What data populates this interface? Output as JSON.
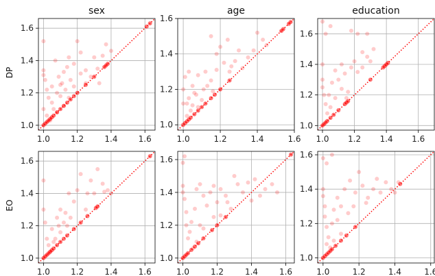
{
  "figure": {
    "column_titles": [
      "sex",
      "age",
      "education"
    ],
    "row_labels": [
      "DP",
      "EO"
    ],
    "colors": {
      "points": "#ff0000",
      "diagonal": "#ff0000",
      "grid": "#b0b0b0",
      "axes": "#000000"
    }
  },
  "chart_data": [
    {
      "type": "scatter",
      "row": 0,
      "col": 0,
      "title": "sex",
      "ylabel": "DP",
      "xlim": [
        0.97,
        1.66
      ],
      "ylim": [
        0.97,
        1.66
      ],
      "xticks": [
        "1.0",
        "1.2",
        "1.4",
        "1.6"
      ],
      "yticks": [
        "1.0",
        "1.2",
        "1.4",
        "1.6"
      ],
      "grid": true,
      "diagonal": true,
      "points": [
        [
          1.0,
          1.52
        ],
        [
          1.0,
          1.34
        ],
        [
          1.0,
          1.31
        ],
        [
          1.01,
          1.28
        ],
        [
          1.02,
          1.22
        ],
        [
          1.03,
          1.17
        ],
        [
          1.0,
          1.1
        ],
        [
          1.02,
          1.06
        ],
        [
          1.05,
          1.14
        ],
        [
          1.08,
          1.2
        ],
        [
          1.1,
          1.25
        ],
        [
          1.12,
          1.33
        ],
        [
          1.15,
          1.42
        ],
        [
          1.18,
          1.38
        ],
        [
          1.2,
          1.52
        ],
        [
          1.22,
          1.45
        ],
        [
          1.25,
          1.34
        ],
        [
          1.28,
          1.3
        ],
        [
          1.3,
          1.42
        ],
        [
          1.33,
          1.26
        ],
        [
          1.35,
          1.43
        ],
        [
          1.07,
          1.4
        ],
        [
          1.1,
          1.18
        ],
        [
          1.13,
          1.22
        ],
        [
          1.15,
          1.17
        ],
        [
          1.04,
          1.03
        ],
        [
          1.06,
          1.1
        ],
        [
          1.08,
          1.08
        ],
        [
          1.12,
          1.12
        ],
        [
          1.16,
          1.28
        ],
        [
          1.18,
          1.24
        ],
        [
          1.25,
          1.26
        ],
        [
          1.32,
          1.35
        ],
        [
          1.37,
          1.5
        ],
        [
          1.4,
          1.46
        ],
        [
          1.05,
          1.24
        ],
        [
          1.09,
          1.3
        ],
        [
          1.11,
          1.26
        ],
        [
          1.14,
          1.36
        ],
        [
          1.22,
          1.32
        ]
      ],
      "diagonal_points": [
        [
          1.0,
          1.0
        ],
        [
          1.01,
          1.01
        ],
        [
          1.02,
          1.02
        ],
        [
          1.03,
          1.03
        ],
        [
          1.04,
          1.04
        ],
        [
          1.05,
          1.05
        ],
        [
          1.06,
          1.06
        ],
        [
          1.08,
          1.08
        ],
        [
          1.1,
          1.1
        ],
        [
          1.12,
          1.12
        ],
        [
          1.14,
          1.14
        ],
        [
          1.16,
          1.16
        ],
        [
          1.18,
          1.18
        ],
        [
          1.2,
          1.2
        ],
        [
          1.25,
          1.25
        ],
        [
          1.3,
          1.3
        ],
        [
          1.36,
          1.36
        ],
        [
          1.37,
          1.37
        ],
        [
          1.38,
          1.38
        ],
        [
          1.61,
          1.61
        ],
        [
          1.63,
          1.63
        ]
      ]
    },
    {
      "type": "scatter",
      "row": 0,
      "col": 1,
      "title": "age",
      "xlim": [
        0.97,
        1.6
      ],
      "ylim": [
        0.97,
        1.6
      ],
      "xticks": [
        "1.0",
        "1.2",
        "1.4",
        "1.6"
      ],
      "yticks": [
        "1.0",
        "1.2",
        "1.4",
        "1.6"
      ],
      "grid": true,
      "diagonal": true,
      "points": [
        [
          1.0,
          1.12
        ],
        [
          1.0,
          1.2
        ],
        [
          1.01,
          1.27
        ],
        [
          1.02,
          1.05
        ],
        [
          1.03,
          1.15
        ],
        [
          1.05,
          1.22
        ],
        [
          1.07,
          1.17
        ],
        [
          1.08,
          1.1
        ],
        [
          1.1,
          1.14
        ],
        [
          1.12,
          1.3
        ],
        [
          1.13,
          1.22
        ],
        [
          1.15,
          1.25
        ],
        [
          1.18,
          1.4
        ],
        [
          1.2,
          1.44
        ],
        [
          1.22,
          1.35
        ],
        [
          1.25,
          1.3
        ],
        [
          1.28,
          1.36
        ],
        [
          1.3,
          1.42
        ],
        [
          1.32,
          1.32
        ],
        [
          1.35,
          1.38
        ],
        [
          1.4,
          1.52
        ],
        [
          1.43,
          1.48
        ],
        [
          1.45,
          1.45
        ],
        [
          1.15,
          1.5
        ],
        [
          1.18,
          1.31
        ],
        [
          1.08,
          1.28
        ],
        [
          1.04,
          1.08
        ],
        [
          1.06,
          1.18
        ],
        [
          1.11,
          1.2
        ],
        [
          1.24,
          1.48
        ],
        [
          1.38,
          1.42
        ],
        [
          1.02,
          1.12
        ],
        [
          1.03,
          1.3
        ],
        [
          1.05,
          1.11
        ],
        [
          1.16,
          1.19
        ],
        [
          1.26,
          1.33
        ]
      ],
      "diagonal_points": [
        [
          1.0,
          1.0
        ],
        [
          1.01,
          1.01
        ],
        [
          1.02,
          1.02
        ],
        [
          1.03,
          1.03
        ],
        [
          1.04,
          1.04
        ],
        [
          1.06,
          1.06
        ],
        [
          1.08,
          1.08
        ],
        [
          1.1,
          1.1
        ],
        [
          1.12,
          1.12
        ],
        [
          1.15,
          1.15
        ],
        [
          1.17,
          1.17
        ],
        [
          1.2,
          1.2
        ],
        [
          1.25,
          1.25
        ],
        [
          1.53,
          1.53
        ],
        [
          1.54,
          1.54
        ],
        [
          1.57,
          1.57
        ],
        [
          1.58,
          1.58
        ]
      ]
    },
    {
      "type": "scatter",
      "row": 0,
      "col": 2,
      "title": "education",
      "xlim": [
        0.97,
        1.7
      ],
      "ylim": [
        0.97,
        1.7
      ],
      "xticks": [
        "1.0",
        "1.2",
        "1.4",
        "1.6"
      ],
      "yticks": [
        "1.0",
        "1.2",
        "1.4",
        "1.6"
      ],
      "grid": true,
      "diagonal": true,
      "points": [
        [
          1.0,
          1.68
        ],
        [
          1.02,
          1.6
        ],
        [
          1.05,
          1.65
        ],
        [
          1.0,
          1.4
        ],
        [
          1.0,
          1.3
        ],
        [
          1.0,
          1.25
        ],
        [
          1.01,
          1.2
        ],
        [
          1.02,
          1.14
        ],
        [
          1.03,
          1.08
        ],
        [
          1.05,
          1.12
        ],
        [
          1.06,
          1.28
        ],
        [
          1.08,
          1.36
        ],
        [
          1.1,
          1.3
        ],
        [
          1.12,
          1.4
        ],
        [
          1.15,
          1.18
        ],
        [
          1.18,
          1.38
        ],
        [
          1.2,
          1.42
        ],
        [
          1.22,
          1.35
        ],
        [
          1.25,
          1.38
        ],
        [
          1.28,
          1.45
        ],
        [
          1.3,
          1.42
        ],
        [
          1.32,
          1.5
        ],
        [
          1.18,
          1.62
        ],
        [
          1.22,
          1.6
        ],
        [
          1.28,
          1.6
        ],
        [
          1.08,
          1.18
        ],
        [
          1.12,
          1.24
        ],
        [
          1.14,
          1.34
        ],
        [
          1.25,
          1.48
        ],
        [
          1.04,
          1.2
        ],
        [
          1.16,
          1.22
        ]
      ],
      "diagonal_points": [
        [
          1.0,
          1.0
        ],
        [
          1.01,
          1.01
        ],
        [
          1.02,
          1.02
        ],
        [
          1.03,
          1.03
        ],
        [
          1.05,
          1.05
        ],
        [
          1.07,
          1.07
        ],
        [
          1.1,
          1.1
        ],
        [
          1.14,
          1.14
        ],
        [
          1.15,
          1.15
        ],
        [
          1.16,
          1.16
        ],
        [
          1.3,
          1.3
        ],
        [
          1.38,
          1.38
        ],
        [
          1.39,
          1.39
        ],
        [
          1.4,
          1.4
        ],
        [
          1.41,
          1.41
        ]
      ]
    },
    {
      "type": "scatter",
      "row": 1,
      "col": 0,
      "ylabel": "EO",
      "xlim": [
        0.97,
        1.66
      ],
      "ylim": [
        0.97,
        1.66
      ],
      "xticks": [
        "1.0",
        "1.2",
        "1.4",
        "1.6"
      ],
      "yticks": [
        "1.0",
        "1.2",
        "1.4",
        "1.6"
      ],
      "grid": true,
      "diagonal": true,
      "points": [
        [
          1.0,
          1.48
        ],
        [
          1.0,
          1.3
        ],
        [
          1.01,
          1.22
        ],
        [
          1.02,
          1.12
        ],
        [
          1.03,
          1.08
        ],
        [
          1.05,
          1.18
        ],
        [
          1.08,
          1.25
        ],
        [
          1.1,
          1.3
        ],
        [
          1.12,
          1.22
        ],
        [
          1.15,
          1.4
        ],
        [
          1.18,
          1.35
        ],
        [
          1.2,
          1.42
        ],
        [
          1.22,
          1.52
        ],
        [
          1.25,
          1.3
        ],
        [
          1.28,
          1.48
        ],
        [
          1.3,
          1.4
        ],
        [
          1.32,
          1.55
        ],
        [
          1.35,
          1.46
        ],
        [
          1.38,
          1.42
        ],
        [
          1.4,
          1.4
        ],
        [
          1.07,
          1.12
        ],
        [
          1.1,
          1.16
        ],
        [
          1.13,
          1.28
        ],
        [
          1.16,
          1.25
        ],
        [
          1.04,
          1.04
        ],
        [
          1.06,
          1.1
        ],
        [
          1.09,
          1.2
        ],
        [
          1.14,
          1.2
        ],
        [
          1.26,
          1.4
        ],
        [
          1.36,
          1.41
        ]
      ],
      "diagonal_points": [
        [
          1.0,
          1.0
        ],
        [
          1.01,
          1.01
        ],
        [
          1.02,
          1.02
        ],
        [
          1.03,
          1.03
        ],
        [
          1.04,
          1.04
        ],
        [
          1.05,
          1.05
        ],
        [
          1.06,
          1.06
        ],
        [
          1.08,
          1.08
        ],
        [
          1.1,
          1.1
        ],
        [
          1.12,
          1.12
        ],
        [
          1.14,
          1.14
        ],
        [
          1.18,
          1.18
        ],
        [
          1.22,
          1.22
        ],
        [
          1.26,
          1.26
        ],
        [
          1.31,
          1.31
        ],
        [
          1.32,
          1.32
        ],
        [
          1.63,
          1.63
        ]
      ]
    },
    {
      "type": "scatter",
      "row": 1,
      "col": 1,
      "xlim": [
        0.97,
        1.65
      ],
      "ylim": [
        0.97,
        1.65
      ],
      "xticks": [
        "1.0",
        "1.2",
        "1.4",
        "1.6"
      ],
      "yticks": [
        "1.0",
        "1.2",
        "1.4",
        "1.6"
      ],
      "grid": true,
      "diagonal": true,
      "points": [
        [
          1.0,
          1.58
        ],
        [
          1.01,
          1.62
        ],
        [
          1.0,
          1.44
        ],
        [
          1.0,
          1.4
        ],
        [
          1.01,
          1.36
        ],
        [
          1.02,
          1.28
        ],
        [
          1.02,
          1.2
        ],
        [
          1.03,
          1.12
        ],
        [
          1.05,
          1.22
        ],
        [
          1.07,
          1.3
        ],
        [
          1.08,
          1.42
        ],
        [
          1.1,
          1.45
        ],
        [
          1.12,
          1.38
        ],
        [
          1.14,
          1.32
        ],
        [
          1.16,
          1.4
        ],
        [
          1.18,
          1.25
        ],
        [
          1.2,
          1.34
        ],
        [
          1.22,
          1.42
        ],
        [
          1.25,
          1.38
        ],
        [
          1.28,
          1.3
        ],
        [
          1.3,
          1.5
        ],
        [
          1.32,
          1.45
        ],
        [
          1.35,
          1.4
        ],
        [
          1.38,
          1.46
        ],
        [
          1.4,
          1.35
        ],
        [
          1.45,
          1.38
        ],
        [
          1.48,
          1.42
        ],
        [
          1.52,
          1.45
        ],
        [
          1.55,
          1.4
        ],
        [
          1.12,
          1.18
        ],
        [
          1.08,
          1.1
        ],
        [
          1.04,
          1.16
        ],
        [
          1.18,
          1.44
        ],
        [
          1.22,
          1.26
        ],
        [
          1.26,
          1.34
        ],
        [
          1.42,
          1.48
        ],
        [
          1.06,
          1.06
        ],
        [
          1.1,
          1.2
        ]
      ],
      "diagonal_points": [
        [
          1.0,
          1.0
        ],
        [
          1.01,
          1.01
        ],
        [
          1.02,
          1.02
        ],
        [
          1.03,
          1.03
        ],
        [
          1.05,
          1.05
        ],
        [
          1.07,
          1.07
        ],
        [
          1.09,
          1.09
        ],
        [
          1.12,
          1.12
        ],
        [
          1.17,
          1.17
        ],
        [
          1.2,
          1.2
        ],
        [
          1.25,
          1.25
        ],
        [
          1.63,
          1.63
        ]
      ]
    },
    {
      "type": "scatter",
      "row": 1,
      "col": 2,
      "xlim": [
        0.97,
        1.62
      ],
      "ylim": [
        0.97,
        1.62
      ],
      "xticks": [
        "1.0",
        "1.2",
        "1.4",
        "1.6"
      ],
      "yticks": [
        "1.0",
        "1.2",
        "1.4",
        "1.6"
      ],
      "grid": true,
      "diagonal": true,
      "points": [
        [
          1.0,
          1.58
        ],
        [
          1.02,
          1.55
        ],
        [
          1.05,
          1.6
        ],
        [
          1.0,
          1.4
        ],
        [
          1.0,
          1.36
        ],
        [
          1.01,
          1.3
        ],
        [
          1.01,
          1.24
        ],
        [
          1.02,
          1.18
        ],
        [
          1.03,
          1.12
        ],
        [
          1.04,
          1.06
        ],
        [
          1.05,
          1.2
        ],
        [
          1.06,
          1.28
        ],
        [
          1.08,
          1.35
        ],
        [
          1.1,
          1.3
        ],
        [
          1.12,
          1.4
        ],
        [
          1.15,
          1.45
        ],
        [
          1.18,
          1.38
        ],
        [
          1.2,
          1.5
        ],
        [
          1.22,
          1.42
        ],
        [
          1.25,
          1.35
        ],
        [
          1.28,
          1.4
        ],
        [
          1.3,
          1.46
        ],
        [
          1.32,
          1.38
        ],
        [
          1.35,
          1.44
        ],
        [
          1.38,
          1.4
        ],
        [
          1.4,
          1.38
        ],
        [
          1.42,
          1.44
        ],
        [
          1.08,
          1.22
        ],
        [
          1.14,
          1.26
        ],
        [
          1.17,
          1.3
        ],
        [
          1.24,
          1.32
        ],
        [
          1.1,
          1.14
        ],
        [
          1.06,
          1.1
        ],
        [
          1.02,
          1.08
        ]
      ],
      "diagonal_points": [
        [
          1.0,
          1.0
        ],
        [
          1.01,
          1.01
        ],
        [
          1.02,
          1.02
        ],
        [
          1.03,
          1.03
        ],
        [
          1.04,
          1.04
        ],
        [
          1.05,
          1.05
        ],
        [
          1.07,
          1.07
        ],
        [
          1.1,
          1.1
        ],
        [
          1.13,
          1.13
        ],
        [
          1.18,
          1.18
        ],
        [
          1.43,
          1.43
        ]
      ]
    }
  ]
}
